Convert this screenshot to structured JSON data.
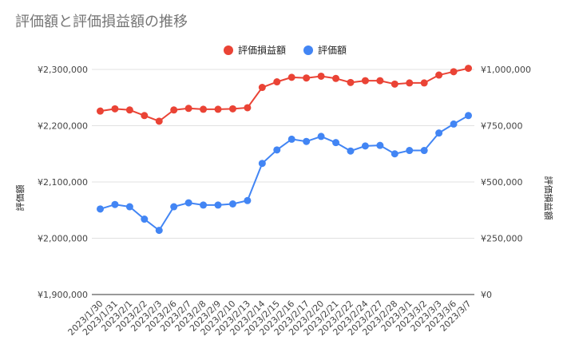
{
  "chart_data": {
    "type": "line",
    "title": "評価額と評価損益額の推移",
    "categories": [
      "2023/1/30",
      "2023/1/31",
      "2023/2/1",
      "2023/2/2",
      "2023/2/3",
      "2023/2/6",
      "2023/2/7",
      "2023/2/8",
      "2023/2/9",
      "2023/2/10",
      "2023/2/13",
      "2023/2/14",
      "2023/2/15",
      "2023/2/16",
      "2023/2/17",
      "2023/2/20",
      "2023/2/21",
      "2023/2/22",
      "2023/2/24",
      "2023/2/27",
      "2023/2/28",
      "2023/3/1",
      "2023/3/2",
      "2023/3/3",
      "2023/3/6",
      "2023/3/7"
    ],
    "y_left": {
      "label": "評価額",
      "ylim": [
        1900000,
        2300000
      ],
      "ticks": [
        1900000,
        2000000,
        2100000,
        2200000,
        2300000
      ],
      "tick_labels": [
        "¥1,900,000",
        "¥2,000,000",
        "¥2,100,000",
        "¥2,200,000",
        "¥2,300,000"
      ]
    },
    "y_right": {
      "label": "評価損益額",
      "ylim": [
        0,
        1000000
      ],
      "ticks": [
        0,
        250000,
        500000,
        750000,
        1000000
      ],
      "tick_labels": [
        "¥0",
        "¥250,000",
        "¥500,000",
        "¥750,000",
        "¥1,000,000"
      ]
    },
    "series": [
      {
        "name": "評価損益額",
        "axis": "right",
        "color": "#ea4335",
        "values": [
          815000,
          825000,
          820000,
          795000,
          770000,
          820000,
          827000,
          823000,
          823000,
          825000,
          830000,
          920000,
          945000,
          965000,
          962000,
          970000,
          960000,
          942000,
          950000,
          950000,
          935000,
          940000,
          940000,
          975000,
          990000,
          1005000
        ]
      },
      {
        "name": "評価額",
        "axis": "left",
        "color": "#4285f4",
        "values": [
          2052000,
          2060000,
          2056000,
          2034000,
          2014000,
          2056000,
          2063000,
          2059000,
          2059000,
          2061000,
          2067000,
          2133000,
          2157000,
          2176000,
          2172000,
          2181000,
          2170000,
          2155000,
          2164000,
          2165000,
          2150000,
          2156000,
          2156000,
          2187000,
          2203000,
          2218000
        ]
      }
    ],
    "grid": true,
    "legend_position": "top"
  }
}
